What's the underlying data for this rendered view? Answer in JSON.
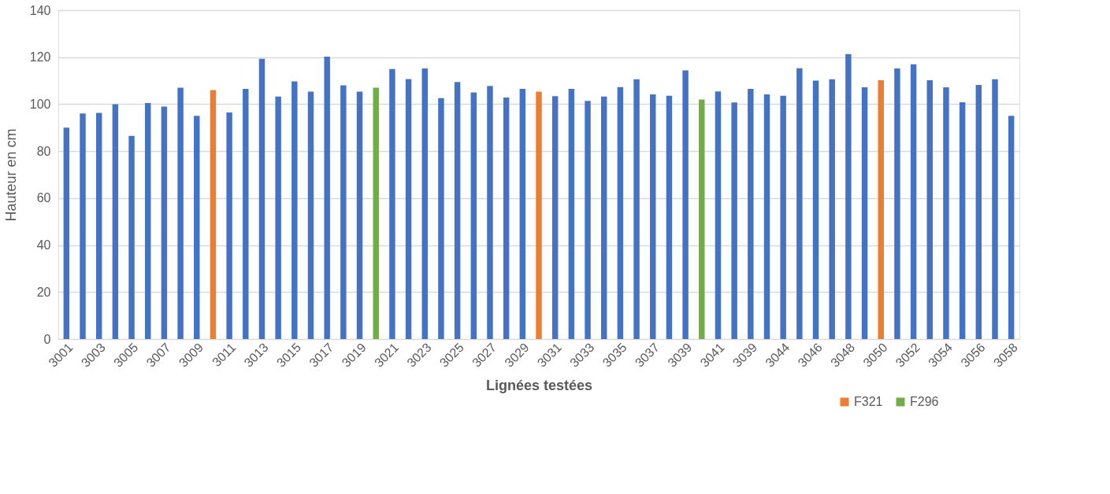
{
  "chart_data": {
    "type": "bar",
    "xlabel": "Lignées testées",
    "ylabel": "Hauteur en cm",
    "categories": [
      "3001",
      null,
      "3003",
      null,
      "3005",
      null,
      "3007",
      null,
      "3009",
      null,
      "3011",
      null,
      "3013",
      null,
      "3015",
      null,
      "3017",
      null,
      "3019",
      null,
      "3021",
      null,
      "3023",
      null,
      "3025",
      null,
      "3027",
      null,
      "3029",
      null,
      "3031",
      null,
      "3033",
      null,
      "3035",
      null,
      "3037",
      null,
      "3039",
      null,
      "3041",
      null,
      "3039",
      null,
      "3044",
      null,
      "3046",
      null,
      "3048",
      null,
      "3050",
      null,
      "3052",
      null,
      "3054",
      null,
      "3056",
      null,
      "3058"
    ],
    "series": [
      {
        "color": "#4472c4",
        "values": [
          90,
          96,
          96.3,
          100,
          86.5,
          100.5,
          99,
          107,
          95,
          null,
          96.5,
          106.5,
          119.3,
          103.2,
          109.7,
          105.3,
          120.2,
          108,
          105.3,
          null,
          115,
          110.7,
          115.2,
          102.6,
          109.4,
          105,
          107.8,
          102.8,
          106.5,
          null,
          103.4,
          106.5,
          101.4,
          103.2,
          107.3,
          110.6,
          104.2,
          103.6,
          114.4,
          null,
          105.4,
          100.7,
          106.5,
          104.2,
          103.6,
          115.3,
          110,
          110.6,
          121.3,
          107.2,
          null,
          115.2,
          117,
          110.2,
          107.2,
          100.8,
          108.2,
          110.6,
          95
        ]
      },
      {
        "name": "F321",
        "color": "#ed7d31",
        "values": [
          null,
          null,
          null,
          null,
          null,
          null,
          null,
          null,
          null,
          106,
          null,
          null,
          null,
          null,
          null,
          null,
          null,
          null,
          null,
          null,
          null,
          null,
          null,
          null,
          null,
          null,
          null,
          null,
          null,
          105.3,
          null,
          null,
          null,
          null,
          null,
          null,
          null,
          null,
          null,
          null,
          null,
          null,
          null,
          null,
          null,
          null,
          null,
          null,
          null,
          null,
          110.2,
          null,
          null,
          null,
          null,
          null,
          null,
          null,
          null
        ]
      },
      {
        "name": "F296",
        "color": "#70ad47",
        "values": [
          null,
          null,
          null,
          null,
          null,
          null,
          null,
          null,
          null,
          null,
          null,
          null,
          null,
          null,
          null,
          null,
          null,
          null,
          null,
          107,
          null,
          null,
          null,
          null,
          null,
          null,
          null,
          null,
          null,
          null,
          null,
          null,
          null,
          null,
          null,
          null,
          null,
          null,
          null,
          102,
          null,
          null,
          null,
          null,
          null,
          null,
          null,
          null,
          null,
          null,
          null,
          null,
          null,
          null,
          null,
          null,
          null,
          null,
          null
        ]
      }
    ],
    "ylim": [
      0,
      140
    ],
    "yticks": [
      0,
      20,
      40,
      60,
      80,
      100,
      120,
      140
    ],
    "grid": "y",
    "legend": "bottom right"
  }
}
